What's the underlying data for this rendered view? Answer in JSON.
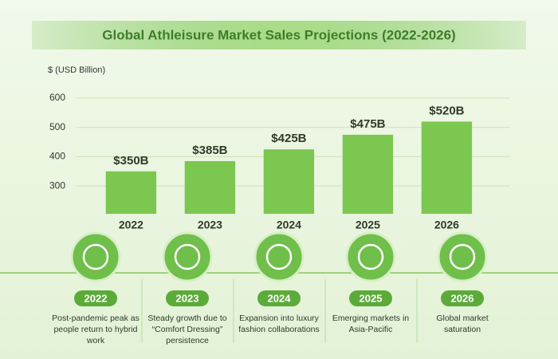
{
  "chart_data": {
    "type": "bar",
    "title": "Global Athleisure Market Sales Projections (2022-2026)",
    "y_label": "$ (USD Billion)",
    "categories": [
      "2022",
      "2023",
      "2024",
      "2025",
      "2026"
    ],
    "values": [
      350,
      385,
      425,
      475,
      520
    ],
    "value_labels": [
      "$350B",
      "$385B",
      "$425B",
      "$475B",
      "$520B"
    ],
    "color": "#7cc74f",
    "ylim": [
      205,
      690
    ],
    "yticks": [
      300,
      400,
      500,
      600
    ],
    "grid": true,
    "annotations": [
      {
        "year": "2022",
        "text": "Post-pandemic peak as people return to hybrid work"
      },
      {
        "year": "2023",
        "text": "Steady growth due to “Comfort Dressing” persistence"
      },
      {
        "year": "2024",
        "text": "Expansion into luxury fashion collaborations"
      },
      {
        "year": "2025",
        "text": "Emerging markets in Asia-Pacific"
      },
      {
        "year": "2026",
        "text": "Global market saturation"
      }
    ]
  }
}
